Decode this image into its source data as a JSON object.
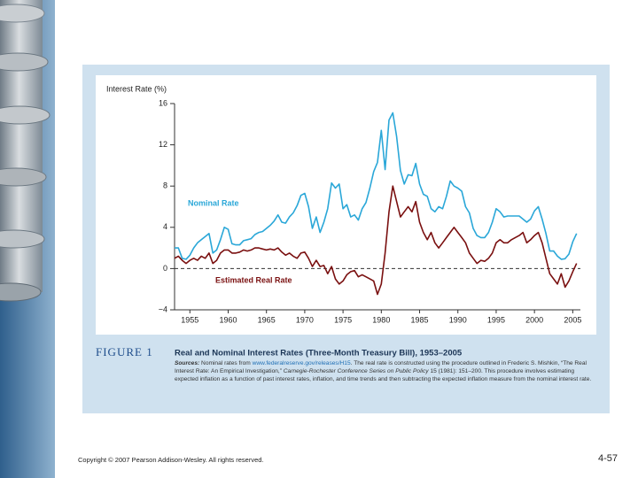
{
  "chart_data": {
    "type": "line",
    "y_label": "Interest Rate (%)",
    "xlim": [
      1953,
      2006
    ],
    "ylim": [
      -4,
      16
    ],
    "xticks": [
      1955,
      1960,
      1965,
      1970,
      1975,
      1980,
      1985,
      1990,
      1995,
      2000,
      2005
    ],
    "yticks": [
      {
        "value": -4,
        "label": "−4"
      },
      0,
      4,
      8,
      12,
      16
    ],
    "reference_line": 0,
    "annotations": [
      "Nominal Rate",
      "Estimated Real Rate"
    ],
    "x": [
      1953,
      1953.5,
      1954,
      1954.5,
      1955,
      1955.5,
      1956,
      1956.5,
      1957,
      1957.5,
      1958,
      1958.5,
      1959,
      1959.5,
      1960,
      1960.5,
      1961,
      1961.5,
      1962,
      1962.5,
      1963,
      1963.5,
      1964,
      1964.5,
      1965,
      1965.5,
      1966,
      1966.5,
      1967,
      1967.5,
      1968,
      1968.5,
      1969,
      1969.5,
      1970,
      1970.5,
      1971,
      1971.5,
      1972,
      1972.5,
      1973,
      1973.5,
      1974,
      1974.5,
      1975,
      1975.5,
      1976,
      1976.5,
      1977,
      1977.5,
      1978,
      1978.5,
      1979,
      1979.5,
      1980,
      1980.5,
      1981,
      1981.5,
      1982,
      1982.5,
      1983,
      1983.5,
      1984,
      1984.5,
      1985,
      1985.5,
      1986,
      1986.5,
      1987,
      1987.5,
      1988,
      1988.5,
      1989,
      1989.5,
      1990,
      1990.5,
      1991,
      1991.5,
      1992,
      1992.5,
      1993,
      1993.5,
      1994,
      1994.5,
      1995,
      1995.5,
      1996,
      1996.5,
      1997,
      1997.5,
      1998,
      1998.5,
      1999,
      1999.5,
      2000,
      2000.5,
      2001,
      2001.5,
      2002,
      2002.5,
      2003,
      2003.5,
      2004,
      2004.5,
      2005,
      2005.5
    ],
    "series": [
      {
        "name": "Nominal Rate",
        "color": "#2aa7d8",
        "values": [
          2.0,
          2.0,
          1.0,
          0.9,
          1.3,
          2.0,
          2.5,
          2.8,
          3.1,
          3.4,
          1.5,
          1.8,
          2.8,
          4.0,
          3.8,
          2.4,
          2.3,
          2.3,
          2.7,
          2.8,
          2.9,
          3.3,
          3.5,
          3.6,
          3.9,
          4.2,
          4.6,
          5.2,
          4.5,
          4.4,
          5.0,
          5.4,
          6.1,
          7.1,
          7.3,
          6.0,
          3.9,
          5.0,
          3.5,
          4.5,
          5.8,
          8.3,
          7.8,
          8.2,
          5.8,
          6.2,
          5.0,
          5.2,
          4.7,
          5.8,
          6.4,
          7.8,
          9.4,
          10.3,
          13.4,
          9.6,
          14.4,
          15.1,
          12.8,
          9.5,
          8.2,
          9.1,
          9.0,
          10.2,
          8.2,
          7.2,
          7.0,
          5.8,
          5.5,
          6.0,
          5.8,
          7.0,
          8.5,
          8.0,
          7.8,
          7.5,
          6.0,
          5.4,
          3.9,
          3.2,
          3.0,
          3.0,
          3.5,
          4.5,
          5.8,
          5.5,
          5.0,
          5.1,
          5.1,
          5.1,
          5.1,
          4.8,
          4.5,
          4.8,
          5.6,
          6.0,
          4.8,
          3.4,
          1.7,
          1.7,
          1.2,
          0.9,
          0.95,
          1.4,
          2.6,
          3.4
        ]
      },
      {
        "name": "Estimated Real Rate",
        "color": "#7a1010",
        "values": [
          1.0,
          1.2,
          0.8,
          0.5,
          0.8,
          1.0,
          0.8,
          1.2,
          1.0,
          1.5,
          0.5,
          0.8,
          1.5,
          1.8,
          1.8,
          1.5,
          1.5,
          1.6,
          1.8,
          1.7,
          1.8,
          2.0,
          2.0,
          1.9,
          1.8,
          1.9,
          1.8,
          2.0,
          1.6,
          1.3,
          1.5,
          1.2,
          1.0,
          1.5,
          1.6,
          1.0,
          0.2,
          0.8,
          0.2,
          0.3,
          -0.5,
          0.2,
          -1.0,
          -1.5,
          -1.2,
          -0.6,
          -0.3,
          -0.2,
          -0.8,
          -0.6,
          -0.8,
          -1.0,
          -1.2,
          -2.5,
          -1.5,
          1.5,
          5.5,
          8.0,
          6.5,
          5.0,
          5.5,
          6.0,
          5.5,
          6.5,
          4.5,
          3.5,
          2.8,
          3.5,
          2.5,
          2.0,
          2.5,
          3.0,
          3.5,
          4.0,
          3.5,
          3.0,
          2.5,
          1.5,
          1.0,
          0.5,
          0.8,
          0.7,
          1.0,
          1.5,
          2.5,
          2.8,
          2.5,
          2.5,
          2.8,
          3.0,
          3.2,
          3.5,
          2.5,
          2.8,
          3.2,
          3.5,
          2.5,
          1.0,
          -0.5,
          -1.0,
          -1.5,
          -0.5,
          -1.8,
          -1.2,
          -0.3,
          0.5
        ]
      }
    ],
    "caption": {
      "figure": "FIGURE 1",
      "title": "Real and Nominal Interest Rates (Three-Month Treasury Bill), 1953–2005",
      "sources": [
        "Sources:",
        " Nominal rates from ",
        "www.federalreserve.gov/releases/H15",
        ". The real rate is constructed using the procedure outlined in Frederic S. Mishkin, “The Real Interest Rate: An Empirical Investigation,” ",
        "Carnegie-Rochester Conference Series on Public Policy",
        " 15 (1981): 151–200. This procedure involves estimating expected inflation as a function of past interest rates, inflation, and time trends and then subtracting the expected inflation measure from the nominal interest rate."
      ]
    }
  },
  "footer": {
    "copyright": "Copyright © 2007 Pearson Addison-Wesley. All rights reserved.",
    "page": "4-57"
  }
}
